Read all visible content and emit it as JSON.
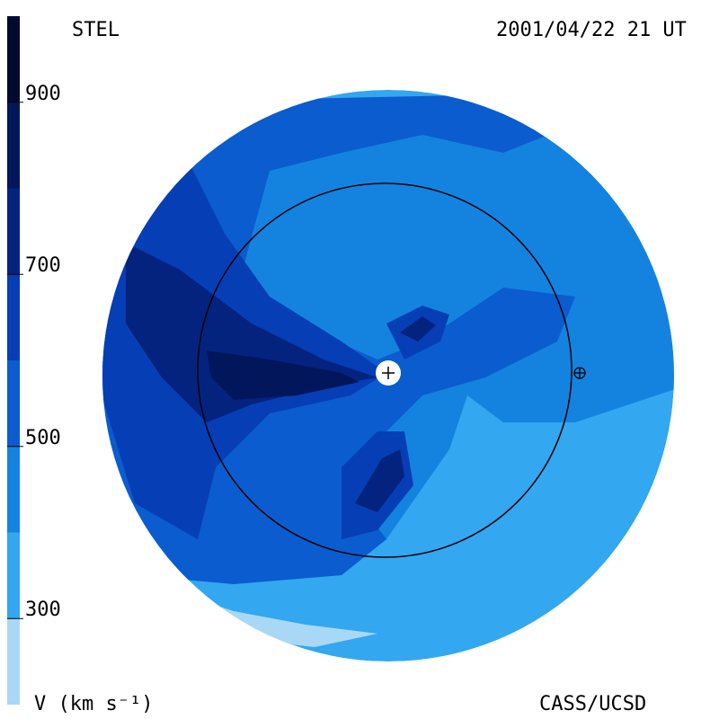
{
  "header": {
    "source_label": "STEL",
    "timestamp": "2001/04/22 21 UT"
  },
  "footer": {
    "colorbar_title": "V (km s⁻¹)",
    "credit": "CASS/UCSD"
  },
  "colorbar": {
    "unit": "km s⁻¹",
    "range": [
      200,
      1000
    ],
    "ticks": [
      "300",
      "500",
      "700",
      "900"
    ],
    "bands": [
      {
        "from": 200,
        "to": 300,
        "color": "#a9d8f7"
      },
      {
        "from": 300,
        "to": 400,
        "color": "#33a7f0"
      },
      {
        "from": 400,
        "to": 500,
        "color": "#1483e0"
      },
      {
        "from": 500,
        "to": 600,
        "color": "#0b5ccf"
      },
      {
        "from": 600,
        "to": 700,
        "color": "#063eb5"
      },
      {
        "from": 700,
        "to": 800,
        "color": "#03237f"
      },
      {
        "from": 800,
        "to": 900,
        "color": "#02165c"
      },
      {
        "from": 900,
        "to": 1000,
        "color": "#010a2e"
      }
    ]
  },
  "markers": {
    "sun_icon": "plus-in-circle",
    "earth_icon": "circle-plus-earth-symbol"
  }
}
